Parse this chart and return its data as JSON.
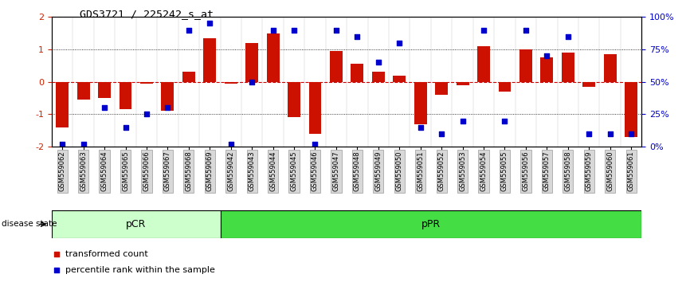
{
  "title": "GDS3721 / 225242_s_at",
  "samples": [
    "GSM559062",
    "GSM559063",
    "GSM559064",
    "GSM559065",
    "GSM559066",
    "GSM559067",
    "GSM559068",
    "GSM559069",
    "GSM559042",
    "GSM559043",
    "GSM559044",
    "GSM559045",
    "GSM559046",
    "GSM559047",
    "GSM559048",
    "GSM559049",
    "GSM559050",
    "GSM559051",
    "GSM559052",
    "GSM559053",
    "GSM559054",
    "GSM559055",
    "GSM559056",
    "GSM559057",
    "GSM559058",
    "GSM559059",
    "GSM559060",
    "GSM559061"
  ],
  "transformed_count": [
    -1.4,
    -0.55,
    -0.5,
    -0.85,
    -0.05,
    -0.9,
    0.3,
    1.35,
    -0.05,
    1.2,
    1.5,
    -1.1,
    -1.6,
    0.95,
    0.55,
    0.3,
    0.2,
    -1.3,
    -0.4,
    -0.1,
    1.1,
    -0.3,
    1.0,
    0.75,
    0.9,
    -0.15,
    0.85,
    -1.7
  ],
  "percentile_rank": [
    2,
    2,
    30,
    15,
    25,
    30,
    90,
    95,
    2,
    50,
    90,
    90,
    2,
    90,
    85,
    65,
    80,
    15,
    10,
    20,
    90,
    20,
    90,
    70,
    85,
    10,
    10,
    10
  ],
  "pcr_count": 8,
  "ppr_count": 20,
  "bar_color": "#cc1100",
  "dot_color": "#0000cc",
  "pcr_color": "#ccffcc",
  "ppr_color": "#44dd44",
  "ylim": [
    -2,
    2
  ],
  "y2lim": [
    0,
    100
  ],
  "zero_line_color": "#cc0000",
  "left_ytick_color": "#cc2200",
  "right_ytick_color": "#0000cc",
  "legend_bar_label": "transformed count",
  "legend_dot_label": "percentile rank within the sample",
  "disease_state_label": "disease state",
  "pcr_label": "pCR",
  "ppr_label": "pPR",
  "tick_label_fontsize": 6.0,
  "title_fontsize": 9.5
}
